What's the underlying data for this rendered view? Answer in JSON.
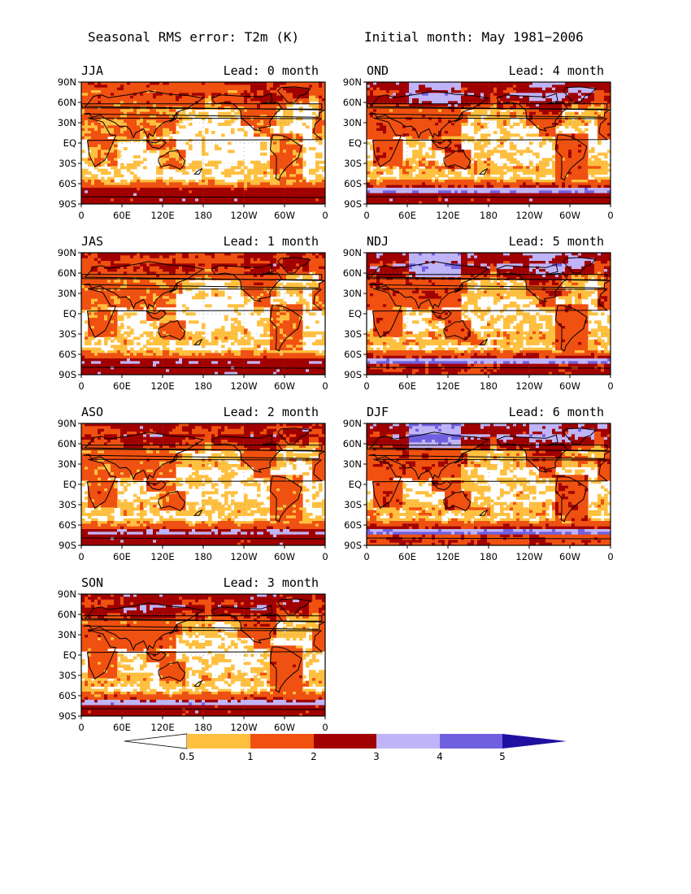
{
  "header": {
    "title_left": "Seasonal RMS error: T2m (K)",
    "title_right": "Initial month: May 1981−2006"
  },
  "axes": {
    "lat_ticks": [
      "90N",
      "60N",
      "30N",
      "EQ",
      "30S",
      "60S",
      "90S"
    ],
    "lon_ticks": [
      "0",
      "60E",
      "120E",
      "180",
      "120W",
      "60W",
      "0"
    ]
  },
  "panels": [
    {
      "season": "JJA",
      "lead": "Lead: 0 month",
      "lead_months": 0,
      "level": 0.9
    },
    {
      "season": "OND",
      "lead": "Lead: 4 month",
      "lead_months": 4,
      "level": 1.35
    },
    {
      "season": "JAS",
      "lead": "Lead: 1 month",
      "lead_months": 1,
      "level": 1.0
    },
    {
      "season": "NDJ",
      "lead": "Lead: 5 month",
      "lead_months": 5,
      "level": 1.4
    },
    {
      "season": "ASO",
      "lead": "Lead: 2 month",
      "lead_months": 2,
      "level": 1.1
    },
    {
      "season": "DJF",
      "lead": "Lead: 6 month",
      "lead_months": 6,
      "level": 1.45
    },
    {
      "season": "SON",
      "lead": "Lead: 3 month",
      "lead_months": 3,
      "level": 1.2
    }
  ],
  "colorbar": {
    "labels": [
      "0.5",
      "1",
      "2",
      "3",
      "4",
      "5"
    ],
    "below_color": "#ffffff",
    "colors": [
      "#ffc040",
      "#f05010",
      "#a00000",
      "#c0b4f8",
      "#7060e0",
      "#2010a0"
    ]
  }
}
